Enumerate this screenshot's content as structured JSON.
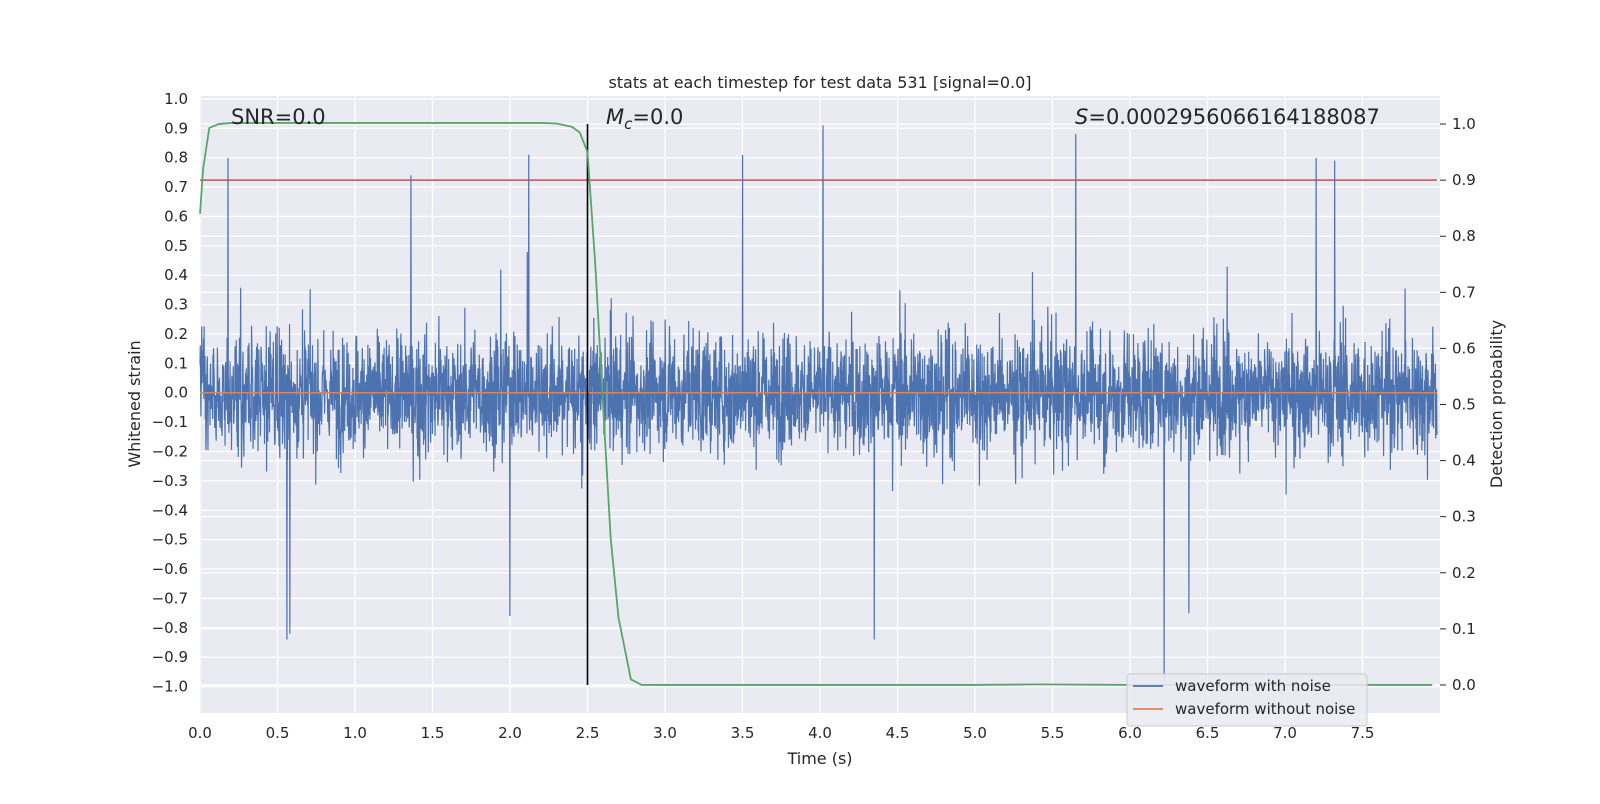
{
  "chart_data": {
    "type": "line",
    "title": "stats at each timestep for test data 531 [signal=0.0]",
    "xlabel": "Time (s)",
    "ylabel_left": "Whitened strain",
    "ylabel_right": "Detection probability",
    "xlim": [
      0.0,
      8.0
    ],
    "ylim_left": [
      -1.09,
      1.01
    ],
    "ylim_right": [
      -0.05,
      1.05
    ],
    "x_ticks": [
      "0.0",
      "0.5",
      "1.0",
      "1.5",
      "2.0",
      "2.5",
      "3.0",
      "3.5",
      "4.0",
      "4.5",
      "5.0",
      "5.5",
      "6.0",
      "6.5",
      "7.0",
      "7.5"
    ],
    "y_ticks_left": [
      "1.0",
      "0.9",
      "0.8",
      "0.7",
      "0.6",
      "0.5",
      "0.4",
      "0.3",
      "0.2",
      "0.1",
      "0.0",
      "−0.1",
      "−0.2",
      "−0.3",
      "−0.4",
      "−0.5",
      "−0.6",
      "−0.7",
      "−0.8",
      "−0.9",
      "−1.0"
    ],
    "y_ticks_right": [
      "1.0",
      "0.9",
      "0.8",
      "0.7",
      "0.6",
      "0.5",
      "0.4",
      "0.3",
      "0.2",
      "0.1",
      "0.0"
    ],
    "grid": true,
    "legend_placement": "lower-right",
    "annotations": {
      "snr": "SNR=0.0",
      "mc_symbol": "M",
      "mc_subscript": "c",
      "mc_value": "=0.0",
      "s_symbol": "S",
      "s_value": "=0.0002956066164188087"
    },
    "vertical_marker_x": 2.5,
    "threshold_probability": 0.9,
    "series": [
      {
        "name": "waveform with noise",
        "axis": "left",
        "color": "#4c72b0",
        "description_only": "dense noise spanning roughly -0.98 to 0.91",
        "envelope_peaks_up": [
          [
            0.18,
            0.8
          ],
          [
            1.36,
            0.74
          ],
          [
            2.12,
            0.81
          ],
          [
            3.5,
            0.81
          ],
          [
            4.02,
            0.91
          ],
          [
            5.65,
            0.88
          ],
          [
            7.2,
            0.8
          ],
          [
            7.32,
            0.79
          ]
        ],
        "envelope_peaks_down": [
          [
            0.56,
            -0.84
          ],
          [
            0.58,
            -0.82
          ],
          [
            2.0,
            -0.76
          ],
          [
            4.35,
            -0.84
          ],
          [
            6.22,
            -0.98
          ],
          [
            6.38,
            -0.75
          ]
        ]
      },
      {
        "name": "waveform without noise",
        "axis": "left",
        "color": "#dd8452",
        "x": [
          0.0,
          8.0
        ],
        "y": [
          0.0,
          0.0
        ]
      },
      {
        "name": "",
        "axis": "right",
        "color": "#55a868",
        "x": [
          0.0,
          0.02,
          0.06,
          0.12,
          0.2,
          0.4,
          1.0,
          1.5,
          2.0,
          2.2,
          2.3,
          2.4,
          2.45,
          2.5,
          2.55,
          2.6,
          2.65,
          2.7,
          2.78,
          2.85,
          3.0,
          4.0,
          5.0,
          5.4,
          6.0,
          7.0,
          7.95
        ],
        "y": [
          0.84,
          0.92,
          0.993,
          1.0,
          1.002,
          1.002,
          1.002,
          1.002,
          1.002,
          1.002,
          1.001,
          0.995,
          0.985,
          0.95,
          0.75,
          0.5,
          0.26,
          0.12,
          0.01,
          0.0,
          0.0,
          0.0,
          0.0,
          0.001,
          0.0,
          0.0,
          0.0
        ]
      },
      {
        "name": "",
        "axis": "right",
        "color": "#c44e52",
        "x": [
          0.0,
          8.0
        ],
        "y": [
          0.9,
          0.9
        ]
      }
    ]
  }
}
